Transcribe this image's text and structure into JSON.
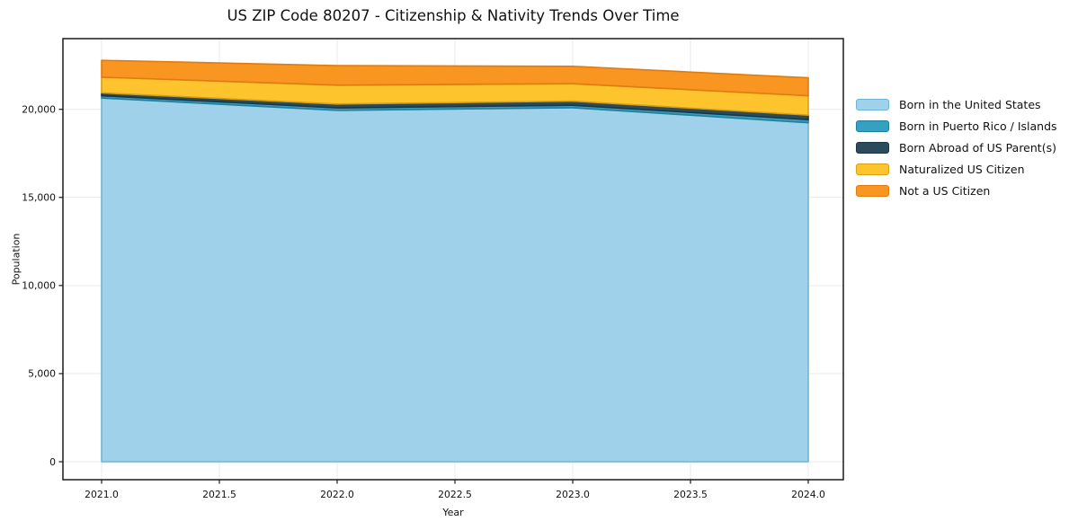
{
  "title": "US ZIP Code 80207 - Citizenship & Nativity Trends Over Time",
  "chart_data": {
    "type": "area",
    "stacked": true,
    "title": "US ZIP Code 80207 - Citizenship & Nativity Trends Over Time",
    "xlabel": "Year",
    "ylabel": "Population",
    "x": [
      2021,
      2022,
      2023,
      2024
    ],
    "series": [
      {
        "name": "Born in the United States",
        "values": [
          20640,
          19940,
          20090,
          19240
        ],
        "color": "#9fd2ea",
        "edge": "#6fb4d6"
      },
      {
        "name": "Born in Puerto Rico / Islands",
        "values": [
          130,
          140,
          140,
          175
        ],
        "color": "#35a1c2",
        "edge": "#217f9c"
      },
      {
        "name": "Born Abroad of US Parent(s)",
        "values": [
          165,
          220,
          235,
          255
        ],
        "color": "#2b4a5c",
        "edge": "#1d3543"
      },
      {
        "name": "Naturalized US Citizen",
        "values": [
          890,
          1070,
          990,
          1100
        ],
        "color": "#fdc42d",
        "edge": "#d6a013"
      },
      {
        "name": "Not a US Citizen",
        "values": [
          955,
          1110,
          985,
          1020
        ],
        "color": "#f89621",
        "edge": "#e07c0e"
      }
    ],
    "totals": [
      22780,
      22480,
      22440,
      21790
    ],
    "xticks": [
      2021.0,
      2021.5,
      2022.0,
      2022.5,
      2023.0,
      2023.5,
      2024.0
    ],
    "xtick_labels": [
      "2021.0",
      "2021.5",
      "2022.0",
      "2022.5",
      "2023.0",
      "2023.5",
      "2024.0"
    ],
    "yticks": [
      0,
      5000,
      10000,
      15000,
      20000
    ],
    "ytick_labels": [
      "0",
      "5,000",
      "10,000",
      "15,000",
      "20,000"
    ],
    "xlim": [
      2020.84,
      2024.16
    ],
    "ylim": [
      0,
      24000
    ],
    "grid": true,
    "legend_position": "right"
  },
  "colors": {
    "grid": "#e9e9e9",
    "axis_border": "#1a1a1a",
    "background": "#ffffff"
  }
}
